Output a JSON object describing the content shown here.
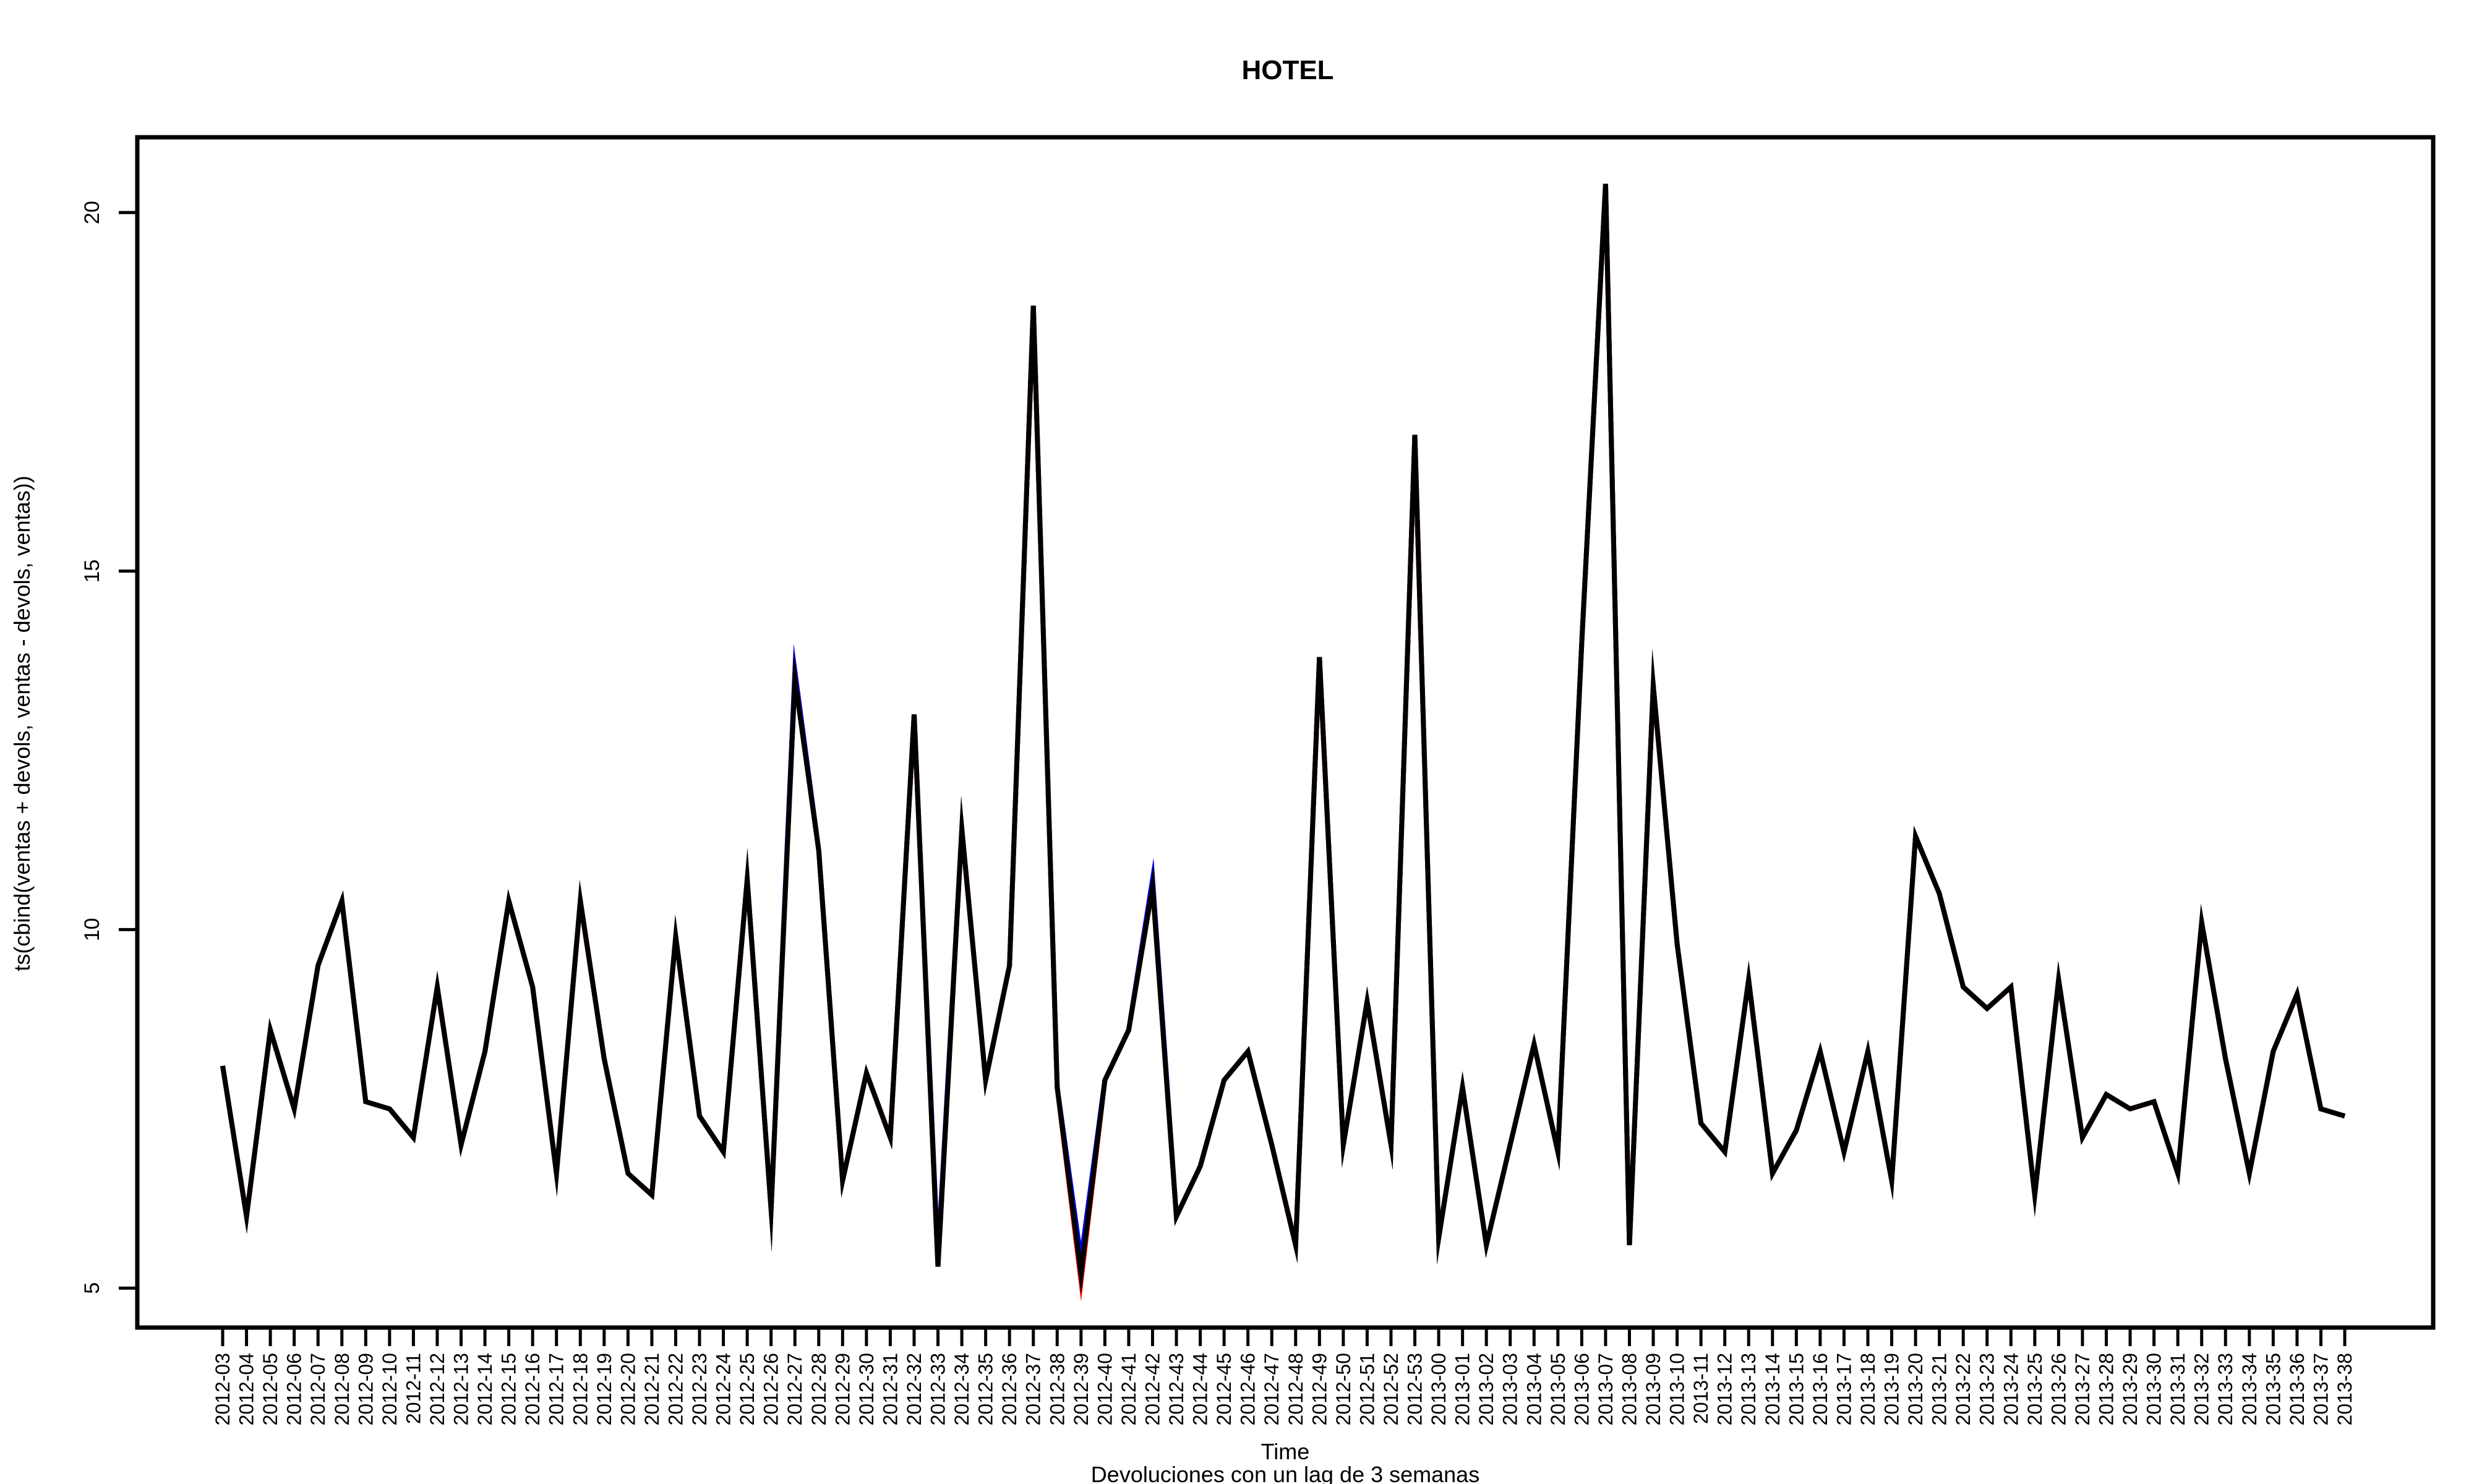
{
  "chart_data": {
    "type": "line",
    "title": "HOTEL",
    "xlabel": "Time",
    "ylabel": "ts(cbind(ventas + devols, ventas - devols, ventas))",
    "caption": "Devoluciones con un lag de 3 semanas",
    "ylim": [
      4.45,
      21.05
    ],
    "yticks": [
      5,
      10,
      15,
      20
    ],
    "grid": false,
    "categories": [
      "2012-03",
      "2012-04",
      "2012-05",
      "2012-06",
      "2012-07",
      "2012-08",
      "2012-09",
      "2012-10",
      "2012-11",
      "2012-12",
      "2012-13",
      "2012-14",
      "2012-15",
      "2012-16",
      "2012-17",
      "2012-18",
      "2012-19",
      "2012-20",
      "2012-21",
      "2012-22",
      "2012-23",
      "2012-24",
      "2012-25",
      "2012-26",
      "2012-27",
      "2012-28",
      "2012-29",
      "2012-30",
      "2012-31",
      "2012-32",
      "2012-33",
      "2012-34",
      "2012-35",
      "2012-36",
      "2012-37",
      "2012-38",
      "2012-39",
      "2012-40",
      "2012-41",
      "2012-42",
      "2012-43",
      "2012-44",
      "2012-45",
      "2012-46",
      "2012-47",
      "2012-48",
      "2012-49",
      "2012-50",
      "2012-51",
      "2012-52",
      "2012-53",
      "2013-00",
      "2013-01",
      "2013-02",
      "2013-03",
      "2013-04",
      "2013-05",
      "2013-06",
      "2013-07",
      "2013-08",
      "2013-09",
      "2013-10",
      "2013-11",
      "2013-12",
      "2013-13",
      "2013-14",
      "2013-15",
      "2013-16",
      "2013-17",
      "2013-18",
      "2013-19",
      "2013-20",
      "2013-21",
      "2013-22",
      "2013-23",
      "2013-24",
      "2013-25",
      "2013-26",
      "2013-27",
      "2013-28",
      "2013-29",
      "2013-30",
      "2013-31",
      "2013-32",
      "2013-33",
      "2013-34",
      "2013-35",
      "2013-36",
      "2013-37",
      "2013-38"
    ],
    "series": [
      {
        "color": "#0000ff",
        "values": [
          8.1,
          6.0,
          8.6,
          7.5,
          9.5,
          10.4,
          7.6,
          7.5,
          7.1,
          9.2,
          7.0,
          8.3,
          10.4,
          9.2,
          6.6,
          10.4,
          8.2,
          6.6,
          6.3,
          9.9,
          7.4,
          6.9,
          10.7,
          6.1,
          13.6,
          11.1,
          6.5,
          8.0,
          7.1,
          13.0,
          5.4,
          11.4,
          7.9,
          9.5,
          18.7,
          7.8,
          5.4,
          7.9,
          8.6,
          10.7,
          6.0,
          6.7,
          7.9,
          8.3,
          7.0,
          5.6,
          13.8,
          7.0,
          9.0,
          7.0,
          16.9,
          5.7,
          7.8,
          5.6,
          7.0,
          8.4,
          6.9,
          14.0,
          20.4,
          5.6,
          13.4,
          9.8,
          7.3,
          6.9,
          9.3,
          6.6,
          7.2,
          8.3,
          6.9,
          8.3,
          6.5,
          11.3,
          10.5,
          9.2,
          8.9,
          9.2,
          6.3,
          9.3,
          7.1,
          7.7,
          7.5,
          7.6,
          6.6,
          10.1,
          8.2,
          6.6,
          8.3,
          9.1,
          7.5,
          7.4
        ]
      },
      {
        "color": "#ff0000",
        "values": [
          8.1,
          6.0,
          8.6,
          7.5,
          9.5,
          10.4,
          7.6,
          7.5,
          7.1,
          9.2,
          7.0,
          8.3,
          10.4,
          9.2,
          6.6,
          10.4,
          8.2,
          6.6,
          6.3,
          9.9,
          7.4,
          6.9,
          10.7,
          6.1,
          13.5,
          11.1,
          6.5,
          8.0,
          7.1,
          13.0,
          5.3,
          11.4,
          7.9,
          9.5,
          18.7,
          7.8,
          5.1,
          7.9,
          8.6,
          10.6,
          6.0,
          6.7,
          7.9,
          8.3,
          7.0,
          5.6,
          13.8,
          7.0,
          9.0,
          7.0,
          16.9,
          5.7,
          7.8,
          5.6,
          7.0,
          8.4,
          6.9,
          14.0,
          20.4,
          5.6,
          13.4,
          9.8,
          7.3,
          6.9,
          9.3,
          6.6,
          7.2,
          8.3,
          6.9,
          8.3,
          6.5,
          11.3,
          10.5,
          9.2,
          8.9,
          9.2,
          6.3,
          9.3,
          7.1,
          7.7,
          7.5,
          7.6,
          6.6,
          10.1,
          8.2,
          6.6,
          8.3,
          9.1,
          7.5,
          7.4
        ]
      },
      {
        "color": "#000000",
        "values": [
          8.1,
          6.0,
          8.6,
          7.5,
          9.5,
          10.4,
          7.6,
          7.5,
          7.1,
          9.2,
          7.0,
          8.3,
          10.4,
          9.2,
          6.6,
          10.4,
          8.2,
          6.6,
          6.3,
          9.9,
          7.4,
          6.9,
          10.7,
          6.1,
          13.5,
          11.1,
          6.5,
          8.0,
          7.1,
          13.0,
          5.3,
          11.4,
          7.9,
          9.5,
          18.7,
          7.8,
          5.2,
          7.9,
          8.6,
          10.6,
          6.0,
          6.7,
          7.9,
          8.3,
          7.0,
          5.6,
          13.8,
          7.0,
          9.0,
          7.0,
          16.9,
          5.7,
          7.8,
          5.6,
          7.0,
          8.4,
          6.9,
          14.0,
          20.4,
          5.6,
          13.4,
          9.8,
          7.3,
          6.9,
          9.3,
          6.6,
          7.2,
          8.3,
          6.9,
          8.3,
          6.5,
          11.3,
          10.5,
          9.2,
          8.9,
          9.2,
          6.3,
          9.3,
          7.1,
          7.7,
          7.5,
          7.6,
          6.6,
          10.1,
          8.2,
          6.6,
          8.3,
          9.1,
          7.5,
          7.4
        ]
      }
    ]
  }
}
